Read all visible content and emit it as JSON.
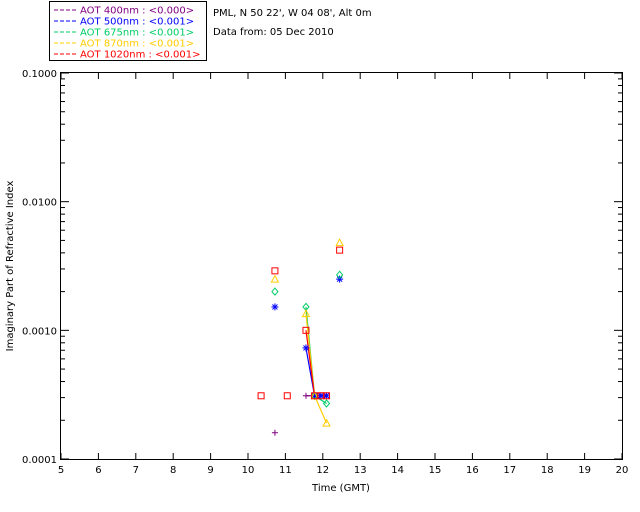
{
  "header": {
    "station": "PML, N 50 22', W 04 08', Alt 0m",
    "date": "Data from: 05 Dec 2010"
  },
  "chart_data": {
    "type": "scatter",
    "xlabel": "Time (GMT)",
    "ylabel": "Imaginary Part of Refractive Index",
    "xlim": [
      5,
      20
    ],
    "ylim": [
      0.0001,
      0.1
    ],
    "yscale": "log",
    "x_ticks": [
      "5",
      "6",
      "7",
      "8",
      "9",
      "10",
      "11",
      "12",
      "13",
      "14",
      "15",
      "16",
      "17",
      "18",
      "19",
      "20"
    ],
    "y_ticks": [
      "0.0001",
      "0.0010",
      "0.0100",
      "0.1000"
    ],
    "grid": false,
    "legend_position": "top-left",
    "series": [
      {
        "name": "AOT  400nm : <0.000>",
        "color": "#800080",
        "marker": "plus",
        "points": [
          [
            10.72,
            0.00016
          ],
          [
            11.55,
            0.00031
          ],
          [
            11.78,
            0.00031
          ],
          [
            11.92,
            0.00031
          ],
          [
            12.05,
            0.00031
          ]
        ],
        "line": [
          [
            11.55,
            0.00031
          ],
          [
            12.05,
            0.00031
          ]
        ]
      },
      {
        "name": "AOT  500nm : <0.001>",
        "color": "#0000ff",
        "marker": "asterisk",
        "points": [
          [
            10.72,
            0.00152
          ],
          [
            11.55,
            0.00073
          ],
          [
            11.78,
            0.00031
          ],
          [
            11.95,
            0.00031
          ],
          [
            12.1,
            0.00031
          ],
          [
            12.45,
            0.0025
          ]
        ],
        "line": [
          [
            11.55,
            0.00073
          ],
          [
            11.78,
            0.00031
          ],
          [
            12.1,
            0.00031
          ]
        ]
      },
      {
        "name": "AOT  675nm : <0.001>",
        "color": "#00cc66",
        "marker": "diamond",
        "points": [
          [
            10.72,
            0.002
          ],
          [
            11.55,
            0.00152
          ],
          [
            11.78,
            0.00031
          ],
          [
            12.1,
            0.00027
          ],
          [
            12.45,
            0.0027
          ]
        ],
        "line": [
          [
            11.55,
            0.00152
          ],
          [
            11.78,
            0.00031
          ],
          [
            12.1,
            0.00027
          ]
        ]
      },
      {
        "name": "AOT  870nm : <0.001>",
        "color": "#ffcc00",
        "marker": "triangle",
        "points": [
          [
            10.72,
            0.0025
          ],
          [
            11.55,
            0.00135
          ],
          [
            11.78,
            0.00031
          ],
          [
            12.1,
            0.00019
          ],
          [
            12.45,
            0.0048
          ]
        ],
        "line": [
          [
            11.55,
            0.00135
          ],
          [
            11.78,
            0.00031
          ],
          [
            12.1,
            0.00019
          ]
        ]
      },
      {
        "name": "AOT 1020nm : <0.001>",
        "color": "#ff0000",
        "marker": "square",
        "points": [
          [
            10.35,
            0.00031
          ],
          [
            10.72,
            0.0029
          ],
          [
            11.05,
            0.00031
          ],
          [
            11.55,
            0.001
          ],
          [
            11.78,
            0.00031
          ],
          [
            11.95,
            0.00031
          ],
          [
            12.1,
            0.00031
          ],
          [
            12.45,
            0.0042
          ]
        ],
        "line": [
          [
            11.55,
            0.001
          ],
          [
            11.78,
            0.00031
          ],
          [
            12.1,
            0.00031
          ]
        ]
      }
    ]
  }
}
